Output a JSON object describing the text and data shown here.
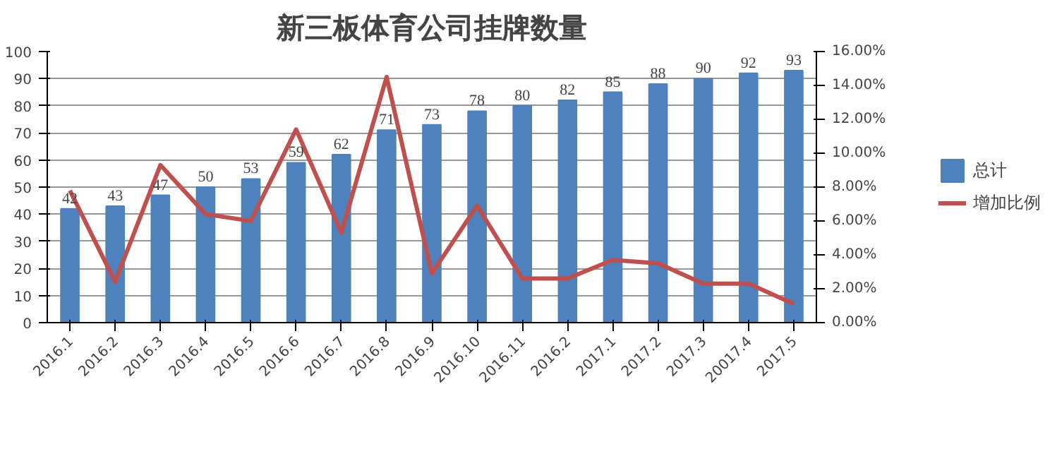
{
  "chart_data": {
    "type": "bar",
    "title": "新三板体育公司挂牌数量",
    "categories": [
      "2016.1",
      "2016.2",
      "2016.3",
      "2016.4",
      "2016.5",
      "2016.6",
      "2016.7",
      "2016.8",
      "2016.9",
      "2016.10",
      "2016.11",
      "2016.2",
      "2017.1",
      "2017.2",
      "2017.3",
      "20017.4",
      "2017.5"
    ],
    "series": [
      {
        "name": "总计",
        "color": "#4f81bd",
        "values": [
          42,
          43,
          47,
          50,
          53,
          59,
          62,
          71,
          73,
          78,
          80,
          82,
          85,
          88,
          90,
          92,
          93
        ],
        "data_labels": true
      },
      {
        "name": "增加比例",
        "color": "#c0504d",
        "type": "line",
        "axis": "y2",
        "values": [
          7.8,
          2.4,
          9.3,
          6.4,
          6.0,
          11.4,
          5.3,
          14.5,
          2.9,
          6.9,
          2.6,
          2.6,
          3.7,
          3.5,
          2.3,
          2.3,
          1.1
        ]
      }
    ],
    "ylim": [
      0,
      100
    ],
    "yticks": [
      0,
      10,
      20,
      30,
      40,
      50,
      60,
      70,
      80,
      90,
      100
    ],
    "y2lim": [
      0,
      16
    ],
    "y2ticks": [
      {
        "value": 0,
        "label": "0.00%"
      },
      {
        "value": 2,
        "label": "2.00%"
      },
      {
        "value": 4,
        "label": "4.00%"
      },
      {
        "value": 6,
        "label": "6.00%"
      },
      {
        "value": 8,
        "label": "8.00%"
      },
      {
        "value": 10,
        "label": "10.00%"
      },
      {
        "value": 12,
        "label": "12.00%"
      },
      {
        "value": 14,
        "label": "14.00%"
      },
      {
        "value": 16,
        "label": "16.00%"
      }
    ],
    "grid": "y",
    "legend": "right",
    "marker": "none",
    "line_style": "solid"
  }
}
